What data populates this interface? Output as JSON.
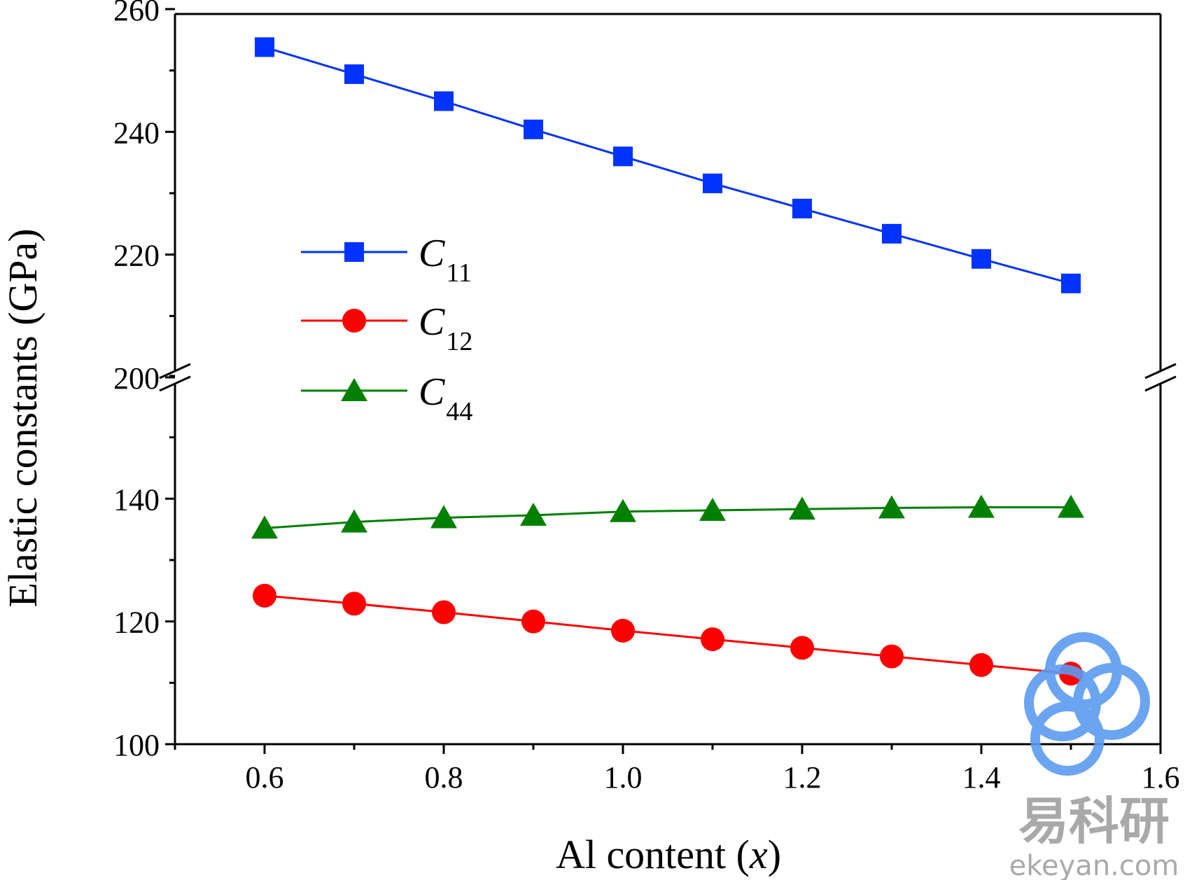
{
  "chart_data": {
    "type": "line",
    "xlabel_parts": [
      "Al content (",
      "x",
      ")"
    ],
    "ylabel": "Elastic constants (GPa)",
    "x": [
      0.6,
      0.7,
      0.8,
      0.9,
      1.0,
      1.1,
      1.2,
      1.3,
      1.4,
      1.5
    ],
    "xlim": [
      0.5,
      1.6
    ],
    "x_ticks": [
      "0.6",
      "0.8",
      "1.0",
      "1.2",
      "1.4",
      "1.6"
    ],
    "y_break": {
      "lower_range": [
        100,
        160
      ],
      "upper_range": [
        200,
        260
      ]
    },
    "y_ticks": [
      "100",
      "120",
      "140",
      "200",
      "220",
      "240",
      "260"
    ],
    "grid": false,
    "legend_position": "center-left",
    "series": [
      {
        "name": "C",
        "name_sub": "11",
        "color": "#0033ff",
        "marker": "square",
        "values": [
          253.8,
          249.4,
          245.0,
          240.4,
          236.0,
          231.6,
          227.5,
          223.4,
          219.3,
          215.3
        ]
      },
      {
        "name": "C",
        "name_sub": "12",
        "color": "#ff0000",
        "marker": "circle",
        "values": [
          124.2,
          122.9,
          121.5,
          120.0,
          118.5,
          117.1,
          115.7,
          114.3,
          112.9,
          111.5
        ]
      },
      {
        "name": "C",
        "name_sub": "44",
        "color": "#008000",
        "marker": "triangle",
        "values": [
          135.2,
          136.2,
          136.9,
          137.3,
          137.9,
          138.1,
          138.3,
          138.5,
          138.6,
          138.6
        ]
      }
    ]
  },
  "watermark": {
    "chinese": "易科研",
    "domain": "ekeyan.com",
    "color": "#5b9bf0"
  }
}
